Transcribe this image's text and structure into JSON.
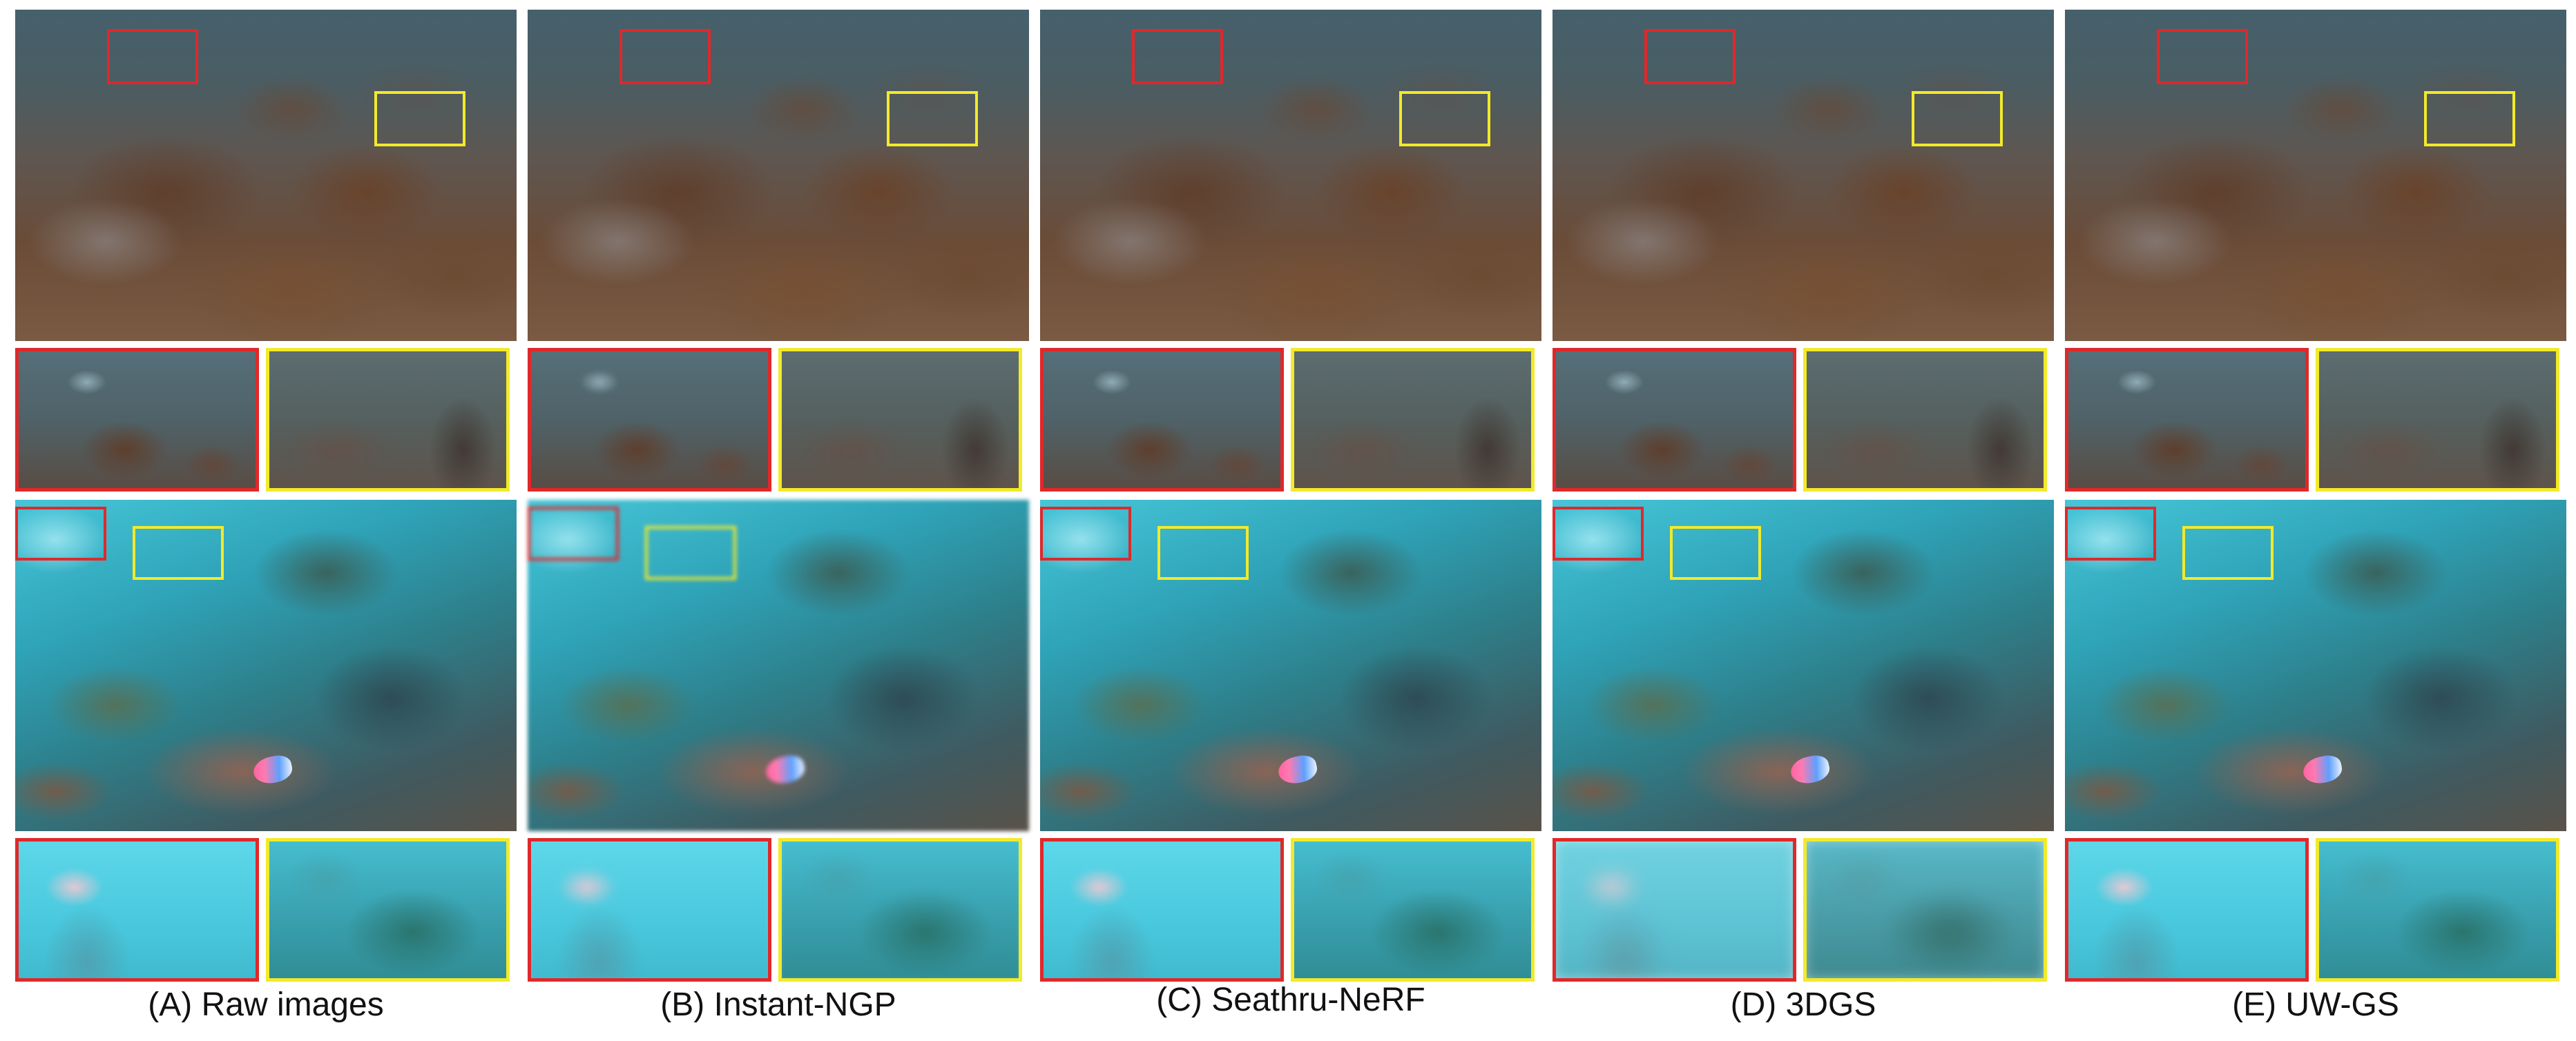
{
  "figure": {
    "colors": {
      "red_box": "#e0282a",
      "yellow_box": "#f2ea2a",
      "background": "#ffffff"
    },
    "columns": [
      {
        "id": "A",
        "caption": "(A) Raw images"
      },
      {
        "id": "B",
        "caption": "(B) Instant-NGP"
      },
      {
        "id": "C",
        "caption": "(C) Seathru-NeRF"
      },
      {
        "id": "D",
        "caption": "(D) 3DGS"
      },
      {
        "id": "E",
        "caption": "(E) UW-GS"
      }
    ]
  }
}
